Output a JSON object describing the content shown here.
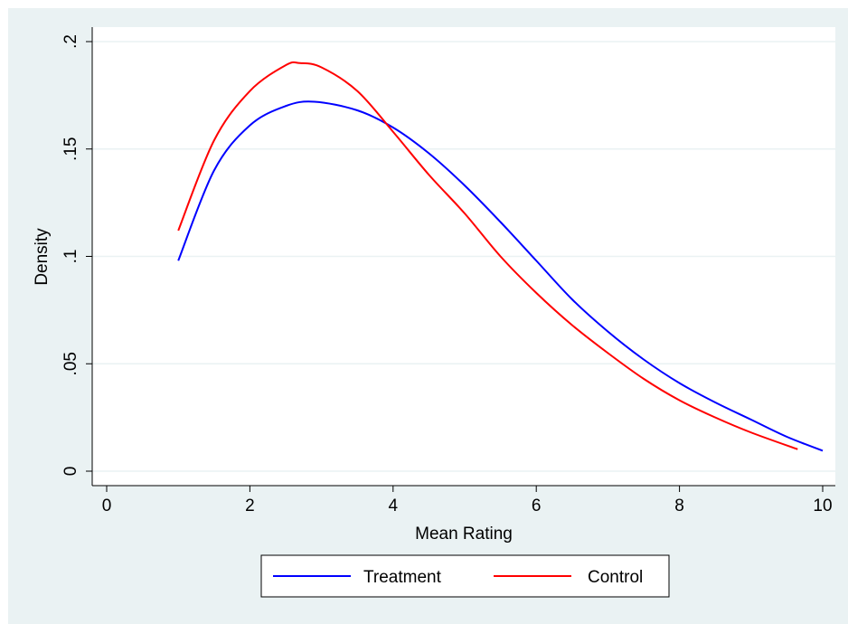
{
  "chart_data": {
    "type": "line",
    "title": "",
    "xlabel": "Mean Rating",
    "ylabel": "Density",
    "xlim": [
      0,
      10
    ],
    "ylim": [
      0,
      0.2
    ],
    "x_ticks": [
      0,
      2,
      4,
      6,
      8,
      10
    ],
    "x_tick_labels": [
      "0",
      "2",
      "4",
      "6",
      "8",
      "10"
    ],
    "y_ticks": [
      0,
      0.05,
      0.1,
      0.15,
      0.2
    ],
    "y_tick_labels": [
      "0",
      ".05",
      ".1",
      ".15",
      ".2"
    ],
    "grid": true,
    "legend_position": "bottom",
    "series": [
      {
        "name": "Treatment",
        "color": "#0000ff",
        "x": [
          1.0,
          1.5,
          2.0,
          2.5,
          2.9,
          3.5,
          4.0,
          4.5,
          5.0,
          5.5,
          6.0,
          6.5,
          7.0,
          7.5,
          8.0,
          8.5,
          9.0,
          9.5,
          10.0
        ],
        "y": [
          0.098,
          0.14,
          0.161,
          0.17,
          0.172,
          0.168,
          0.16,
          0.148,
          0.133,
          0.116,
          0.098,
          0.08,
          0.065,
          0.052,
          0.041,
          0.032,
          0.024,
          0.016,
          0.0095
        ]
      },
      {
        "name": "Control",
        "color": "#ff0000",
        "x": [
          1.0,
          1.5,
          2.0,
          2.5,
          2.7,
          3.0,
          3.5,
          4.0,
          4.5,
          5.0,
          5.5,
          6.0,
          6.5,
          7.0,
          7.5,
          8.0,
          8.5,
          9.0,
          9.65
        ],
        "y": [
          0.112,
          0.154,
          0.177,
          0.189,
          0.19,
          0.188,
          0.177,
          0.158,
          0.138,
          0.12,
          0.1,
          0.083,
          0.068,
          0.055,
          0.043,
          0.033,
          0.025,
          0.018,
          0.0102
        ]
      }
    ]
  }
}
